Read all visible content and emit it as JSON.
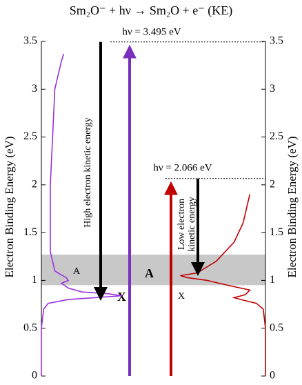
{
  "chart_data": {
    "type": "spectrum",
    "title": "Sm₂O⁻ + hν → Sm₂O + e⁻ (KE)",
    "y_label": "Electron Binding Energy (eV)",
    "y2_label": "Electron Binding Energy (eV)",
    "ylim": [
      0,
      3.5
    ],
    "yticks": [
      0,
      0.5,
      1,
      1.5,
      2,
      2.5,
      3,
      3.5
    ],
    "y2lim": [
      0,
      3.5
    ],
    "y2ticks": [
      0,
      0.5,
      1,
      1.5,
      2,
      2.5,
      3,
      3.5
    ],
    "xlim": [
      0,
      1
    ],
    "band": [
      0.95,
      1.27
    ],
    "photon_energies": [
      {
        "value": 3.495,
        "label": "hν = 3.495 eV",
        "color": "#7b2fbe"
      },
      {
        "value": 2.066,
        "label": "hν = 2.066 eV",
        "color": "#c00000"
      }
    ],
    "annotations": [
      "High electron kinetic energy",
      "Low electron",
      "kinetic energy"
    ],
    "series": [
      {
        "color": "#9b30e0",
        "side": "left",
        "energy": [
          0,
          0.5,
          0.7,
          0.76,
          0.8,
          0.83,
          0.84,
          0.86,
          0.88,
          0.92,
          0.97,
          1.0,
          1.03,
          1.07,
          1.1,
          1.2,
          1.3,
          1.5,
          2.0,
          2.5,
          3.0,
          3.2,
          3.3,
          3.37
        ],
        "intensity": [
          0.0,
          0.0,
          0.01,
          0.03,
          0.12,
          0.3,
          0.36,
          0.3,
          0.18,
          0.12,
          0.09,
          0.12,
          0.11,
          0.08,
          0.06,
          0.05,
          0.04,
          0.04,
          0.04,
          0.05,
          0.06,
          0.08,
          0.09,
          0.1
        ],
        "peak_labels": [
          "A",
          "X"
        ]
      },
      {
        "color": "#c00000",
        "side": "right",
        "energy": [
          0,
          0.5,
          0.7,
          0.76,
          0.8,
          0.82,
          0.85,
          0.9,
          0.95,
          1.0,
          1.03,
          1.05,
          1.08,
          1.1,
          1.2,
          1.3,
          1.4,
          1.5,
          1.6,
          1.7,
          1.8,
          1.9
        ],
        "intensity": [
          0.0,
          0.0,
          0.01,
          0.04,
          0.11,
          0.14,
          0.09,
          0.07,
          0.17,
          0.26,
          0.35,
          0.38,
          0.3,
          0.29,
          0.22,
          0.18,
          0.14,
          0.12,
          0.1,
          0.09,
          0.08,
          0.07
        ],
        "peak_labels": [
          "A",
          "X"
        ]
      }
    ]
  }
}
